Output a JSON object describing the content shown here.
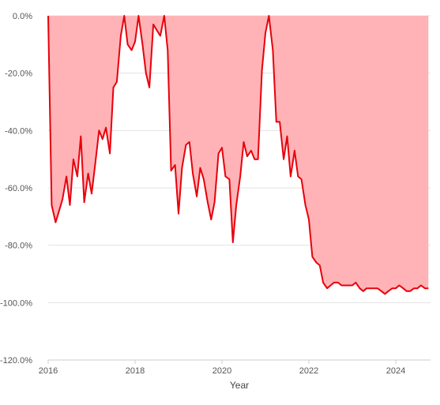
{
  "chart_data": {
    "type": "area",
    "xlabel": "Year",
    "ylabel": "",
    "xlim": [
      2016,
      2024.8
    ],
    "ylim": [
      -120,
      0
    ],
    "x_ticks": [
      2016,
      2018,
      2020,
      2022,
      2024
    ],
    "x_tick_labels": [
      "2016",
      "2018",
      "2020",
      "2022",
      "2024"
    ],
    "y_ticks": [
      0,
      -20,
      -40,
      -60,
      -80,
      -100,
      -120
    ],
    "y_tick_labels": [
      "0.0%",
      "-20.0%",
      "-40.0%",
      "-60.0%",
      "-80.0%",
      "-100.0%",
      "-120.0%"
    ],
    "grid": true,
    "legend": "none",
    "colors": {
      "line": "#e8000b",
      "fill": "#ffb3b6"
    },
    "series": [
      {
        "x": [
          2016.0,
          2016.08,
          2016.17,
          2016.25,
          2016.33,
          2016.42,
          2016.5,
          2016.58,
          2016.67,
          2016.75,
          2016.83,
          2016.92,
          2017.0,
          2017.08,
          2017.17,
          2017.25,
          2017.33,
          2017.42,
          2017.5,
          2017.58,
          2017.67,
          2017.75,
          2017.83,
          2017.92,
          2018.0,
          2018.08,
          2018.17,
          2018.25,
          2018.33,
          2018.42,
          2018.5,
          2018.58,
          2018.67,
          2018.75,
          2018.83,
          2018.92,
          2019.0,
          2019.08,
          2019.17,
          2019.25,
          2019.33,
          2019.42,
          2019.5,
          2019.58,
          2019.67,
          2019.75,
          2019.83,
          2019.92,
          2020.0,
          2020.08,
          2020.17,
          2020.25,
          2020.33,
          2020.42,
          2020.5,
          2020.58,
          2020.67,
          2020.75,
          2020.83,
          2020.92,
          2021.0,
          2021.08,
          2021.17,
          2021.25,
          2021.33,
          2021.42,
          2021.5,
          2021.58,
          2021.67,
          2021.75,
          2021.83,
          2021.92,
          2022.0,
          2022.08,
          2022.17,
          2022.25,
          2022.33,
          2022.42,
          2022.5,
          2022.58,
          2022.67,
          2022.75,
          2022.83,
          2022.92,
          2023.0,
          2023.08,
          2023.17,
          2023.25,
          2023.33,
          2023.42,
          2023.5,
          2023.58,
          2023.67,
          2023.75,
          2023.83,
          2023.92,
          2024.0,
          2024.08,
          2024.17,
          2024.25,
          2024.33,
          2024.42,
          2024.5,
          2024.58,
          2024.67,
          2024.75
        ],
        "values": [
          0,
          -66,
          -72,
          -68,
          -64,
          -56,
          -66,
          -50,
          -56,
          -42,
          -65,
          -55,
          -62,
          -52,
          -40,
          -43,
          -39,
          -48,
          -25,
          -23,
          -7,
          0,
          -10,
          -12,
          -9,
          0,
          -10,
          -20,
          -25,
          -3,
          -5,
          -7,
          0,
          -12,
          -54,
          -52,
          -69,
          -53,
          -45,
          -44,
          -55,
          -63,
          -53,
          -57,
          -65,
          -71,
          -65,
          -48,
          -46,
          -56,
          -57,
          -79,
          -66,
          -56,
          -44,
          -49,
          -47,
          -50,
          -50,
          -19,
          -6,
          0,
          -12,
          -37,
          -37,
          -50,
          -42,
          -56,
          -47,
          -56,
          -57,
          -66,
          -71,
          -84,
          -86,
          -87,
          -93,
          -95,
          -94,
          -93,
          -93,
          -94,
          -94,
          -94,
          -94,
          -93,
          -95,
          -96,
          -95,
          -95,
          -95,
          -95,
          -96,
          -97,
          -96,
          -95,
          -95,
          -94,
          -95,
          -96,
          -96,
          -95,
          -95,
          -94,
          -95,
          -95
        ]
      }
    ]
  }
}
